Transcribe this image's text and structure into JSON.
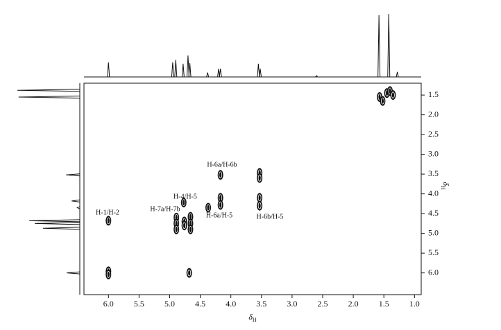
{
  "chart_data": {
    "type": "scatter",
    "x_label": {
      "symbol": "δ",
      "subscript": "H"
    },
    "y_label": {
      "symbol": "δ",
      "subscript": "H"
    },
    "xlim": [
      6.4,
      0.89
    ],
    "ylim": [
      1.2,
      6.55
    ],
    "xticks": [
      {
        "value": 6.0,
        "label": "6.0"
      },
      {
        "value": 5.5,
        "label": "5.5"
      },
      {
        "value": 5.0,
        "label": "5.0"
      },
      {
        "value": 4.5,
        "label": "4.5"
      },
      {
        "value": 4.0,
        "label": "4.0"
      },
      {
        "value": 3.5,
        "label": "3.5"
      },
      {
        "value": 3.0,
        "label": "3.0"
      },
      {
        "value": 2.5,
        "label": "2.5"
      },
      {
        "value": 2.0,
        "label": "2.0"
      },
      {
        "value": 1.5,
        "label": "1.5"
      },
      {
        "value": 1.0,
        "label": "1.0"
      }
    ],
    "yticks": [
      {
        "value": 1.5,
        "label": "1.5"
      },
      {
        "value": 2.0,
        "label": "2.0"
      },
      {
        "value": 2.5,
        "label": "2.5"
      },
      {
        "value": 3.0,
        "label": "3.0"
      },
      {
        "value": 3.5,
        "label": "3.5"
      },
      {
        "value": 4.0,
        "label": "4.0"
      },
      {
        "value": 4.5,
        "label": "4.5"
      },
      {
        "value": 5.0,
        "label": "5.0"
      },
      {
        "value": 5.5,
        "label": "5.5"
      },
      {
        "value": 6.0,
        "label": "6.0"
      }
    ],
    "series": [
      {
        "name": "cross peaks",
        "color": "#111111",
        "x": [
          6.0,
          6.0,
          6.0,
          4.68,
          4.89,
          4.89,
          4.89,
          4.76,
          4.76,
          4.66,
          4.66,
          4.66,
          4.77,
          4.37,
          4.17,
          4.17,
          4.17,
          3.53,
          3.53,
          3.53,
          3.53,
          1.57,
          1.52,
          1.45,
          1.4,
          1.35
        ],
        "values": [
          4.68,
          5.96,
          6.04,
          6.0,
          4.6,
          4.75,
          4.9,
          4.7,
          4.8,
          4.58,
          4.75,
          4.9,
          4.22,
          4.35,
          4.1,
          4.28,
          3.52,
          3.47,
          3.6,
          4.1,
          4.3,
          1.55,
          1.65,
          1.45,
          1.4,
          1.5
        ]
      }
    ],
    "f2_projection": {
      "x": [
        6.0,
        4.95,
        4.9,
        4.78,
        4.7,
        4.67,
        4.38,
        4.2,
        4.17,
        3.55,
        3.52,
        2.6,
        1.58,
        1.42,
        1.28
      ],
      "values": [
        23,
        23,
        27,
        21,
        34,
        22,
        7,
        13,
        13,
        21,
        13,
        2,
        98,
        100,
        8
      ]
    },
    "f1_projection": {
      "y": [
        1.38,
        1.55,
        3.52,
        4.18,
        4.35,
        4.68,
        4.75,
        4.87,
        6.0
      ],
      "values": [
        100,
        98,
        22,
        13,
        4,
        81,
        72,
        59,
        21
      ]
    },
    "annotations": [
      "H-1/H-2",
      "H-7a/H-7b",
      "H-4/H-5",
      "H-6a/H-6b",
      "H-6a/H-5",
      "H-6b/H-5"
    ]
  }
}
